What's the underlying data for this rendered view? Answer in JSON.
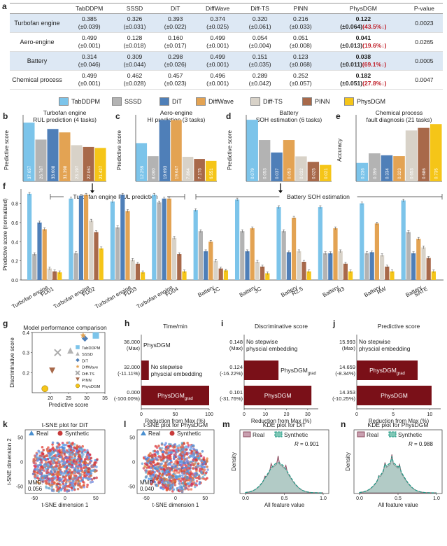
{
  "panel_letters": {
    "a": "a",
    "b": "b",
    "c": "c",
    "d": "d",
    "e": "e",
    "f": "f",
    "g": "g",
    "h": "h",
    "i": "i",
    "j": "j",
    "k": "k",
    "l": "l",
    "m": "m",
    "n": "n"
  },
  "table": {
    "columns": [
      "",
      "TabDDPM",
      "SSSD",
      "DiT",
      "DiffWave",
      "Diff-TS",
      "PINN",
      "PhysDGM",
      "P-value"
    ],
    "rows": [
      {
        "name": "Turbofan engine",
        "shade": true,
        "cells": [
          [
            "0.385",
            "(±0.039)"
          ],
          [
            "0.326",
            "(±0.031)"
          ],
          [
            "0.393",
            "(±0.022)"
          ],
          [
            "0.374",
            "(±0.025)"
          ],
          [
            "0.320",
            "(±0.061)"
          ],
          [
            "0.216",
            "(±0.033)"
          ]
        ],
        "best": [
          "0.122",
          "(±0.064)",
          "(43.5%↓)"
        ],
        "p": "0.0023"
      },
      {
        "name": "Aero-engine",
        "shade": false,
        "cells": [
          [
            "0.499",
            "(±0.001)"
          ],
          [
            "0.128",
            "(±0.018)"
          ],
          [
            "0.160",
            "(±0.017)"
          ],
          [
            "0.499",
            "(±0.001)"
          ],
          [
            "0.054",
            "(±0.004)"
          ],
          [
            "0.051",
            "(±0.008)"
          ]
        ],
        "best": [
          "0.041",
          "(±0.013)",
          "(19.6%↓)"
        ],
        "p": "0.0265"
      },
      {
        "name": "Battery",
        "shade": true,
        "cells": [
          [
            "0.314",
            "(±0.046)"
          ],
          [
            "0.309",
            "(±0.044)"
          ],
          [
            "0.298",
            "(±0.026)"
          ],
          [
            "0.499",
            "(±0.001)"
          ],
          [
            "0.151",
            "(±0.035)"
          ],
          [
            "0.123",
            "(±0.068)"
          ]
        ],
        "best": [
          "0.038",
          "(±0.011)",
          "(69.1%↓)"
        ],
        "p": "0.0005"
      },
      {
        "name": "Chemical process",
        "shade": false,
        "cells": [
          [
            "0.499",
            "(±0.001)"
          ],
          [
            "0.462",
            "(±0.028)"
          ],
          [
            "0.457",
            "(±0.023)"
          ],
          [
            "0.496",
            "(±0.001)"
          ],
          [
            "0.289",
            "(±0.042)"
          ],
          [
            "0.252",
            "(±0.057)"
          ]
        ],
        "best": [
          "0.182",
          "(±0.051)",
          "(27.8%↓)"
        ],
        "p": "0.0047"
      }
    ]
  },
  "legend": {
    "items": [
      "TabDDPM",
      "SSSD",
      "DiT",
      "DiffWave",
      "Diff-TS",
      "PINN",
      "PhysDGM"
    ]
  },
  "colors": {
    "TabDDPM": "#7cc4ea",
    "SSSD": "#b3b3b3",
    "DiT": "#4f7fb8",
    "DiffWave": "#e3a353",
    "Diff-TS": "#d8d2c8",
    "PINN": "#a8694a",
    "PhysDGM": "#f5c518",
    "dark": "#7a1018"
  },
  "chart_data": [
    {
      "type": "bar",
      "panel": "b",
      "title": "Turbofan engine",
      "subtitle": "RUL prediction (4 tasks)",
      "ylabel": "Predictive score",
      "categories": [
        "TabDDPM",
        "SSSD",
        "DiT",
        "DiffWave",
        "Diff-TS",
        "PINN",
        "PhysDGM"
      ],
      "values": [
        37.657,
        26.787,
        33.608,
        31.398,
        23.197,
        22.061,
        21.427
      ],
      "labels": [
        "37.657",
        "26.787",
        "33.608",
        "31.398",
        "23.197",
        "22.061",
        "21.427"
      ],
      "ylim": [
        0,
        40
      ]
    },
    {
      "type": "bar",
      "panel": "c",
      "title": "Aero-engine",
      "subtitle": "HI prediction (3 tasks)",
      "ylabel": "Predictive score",
      "categories": [
        "TabDDPM",
        "SSSD",
        "DiT",
        "DiffWave",
        "Diff-TS",
        "PINN",
        "PhysDGM"
      ],
      "values": [
        12.259,
        8.06,
        19.693,
        19.647,
        7.864,
        7.175,
        6.551
      ],
      "labels": [
        "12.259",
        "8.060",
        "19.693",
        "19.647",
        "7.864",
        "7.175",
        "6.551"
      ],
      "ylim": [
        0,
        20
      ]
    },
    {
      "type": "bar",
      "panel": "d",
      "title": "Battery",
      "subtitle": "SOH estimation (6 tasks)",
      "ylabel": "Predictive score",
      "categories": [
        "TabDDPM",
        "SSSD",
        "DiT",
        "DiffWave",
        "Diff-TS",
        "PINN",
        "PhysDGM"
      ],
      "values": [
        0.079,
        0.053,
        0.037,
        0.053,
        0.032,
        0.025,
        0.021
      ],
      "labels": [
        "0.079",
        "0.053",
        "0.037",
        "0.053",
        "0.032",
        "0.025",
        "0.021"
      ],
      "ylim": [
        0,
        0.08
      ]
    },
    {
      "type": "bar",
      "panel": "e",
      "title": "Chemical process",
      "subtitle": "fault diagnosis (21 tasks)",
      "ylabel": "Accuracy",
      "categories": [
        "TabDDPM",
        "SSSD",
        "DiT",
        "DiffWave",
        "Diff-TS",
        "PINN",
        "PhysDGM"
      ],
      "values": [
        0.236,
        0.359,
        0.334,
        0.323,
        0.653,
        0.686,
        0.735
      ],
      "labels": [
        "0.236",
        "0.359",
        "0.334",
        "0.323",
        "0.653",
        "0.686",
        "0.735"
      ],
      "ylim": [
        0,
        0.8
      ]
    },
    {
      "type": "bar",
      "panel": "f",
      "ylabel": "Predictive score (normalized)",
      "bracket_left": "Turbofan engine RUL prediction",
      "bracket_right": "Battery SOH estimation",
      "ylim": [
        0,
        1
      ],
      "yticks": [
        "0.0",
        "0.2",
        "0.4",
        "0.6",
        "0.8"
      ],
      "categories": [
        "Turbofan engine FD01",
        "Turbofan engine FD02",
        "Turbofan engine FD03",
        "Turbofan engine FD04",
        "Battery 2C",
        "Battery 3C",
        "Battery R2.5",
        "Battery R3",
        "Battery RW",
        "Battery SATE"
      ],
      "series": [
        {
          "name": "TabDDPM",
          "values": [
            0.9,
            0.85,
            0.82,
            0.89,
            0.73,
            0.84,
            0.76,
            0.76,
            0.8,
            0.83
          ]
        },
        {
          "name": "SSSD",
          "values": [
            0.27,
            0.28,
            0.55,
            0.81,
            0.51,
            0.51,
            0.51,
            0.28,
            0.28,
            0.5
          ]
        },
        {
          "name": "DiT",
          "values": [
            0.6,
            0.88,
            0.89,
            0.85,
            0.3,
            0.3,
            0.29,
            0.28,
            0.29,
            0.28
          ]
        },
        {
          "name": "DiffWave",
          "values": [
            0.53,
            0.89,
            0.72,
            0.85,
            0.4,
            0.54,
            0.65,
            0.54,
            0.59,
            0.43
          ]
        },
        {
          "name": "Diff-TS",
          "values": [
            0.12,
            0.62,
            0.21,
            0.44,
            0.2,
            0.19,
            0.3,
            0.3,
            0.26,
            0.34
          ]
        },
        {
          "name": "PINN",
          "values": [
            0.09,
            0.5,
            0.17,
            0.27,
            0.12,
            0.14,
            0.19,
            0.17,
            0.14,
            0.23
          ]
        },
        {
          "name": "PhysDGM",
          "values": [
            0.08,
            0.33,
            0.08,
            0.09,
            0.1,
            0.07,
            0.09,
            0.09,
            0.09,
            0.09
          ]
        }
      ]
    },
    {
      "type": "scatter",
      "panel": "g",
      "title": "Model performance comparison",
      "xlabel": "Predictive score",
      "ylabel": "Discriminative score",
      "xlim": [
        15,
        35
      ],
      "ylim": [
        0.1,
        0.4
      ],
      "points": [
        {
          "name": "TabDDPM",
          "x": 32.5,
          "y": 0.385,
          "shape": "square"
        },
        {
          "name": "SSSD",
          "x": 25.5,
          "y": 0.31,
          "shape": "triangle"
        },
        {
          "name": "DiT",
          "x": 29.5,
          "y": 0.37,
          "shape": "diamond"
        },
        {
          "name": "DiffWave",
          "x": 29.0,
          "y": 0.385,
          "shape": "star"
        },
        {
          "name": "Diff-TS",
          "x": 22.0,
          "y": 0.3,
          "shape": "cross"
        },
        {
          "name": "PINN",
          "x": 20.5,
          "y": 0.21,
          "shape": "tri-down"
        },
        {
          "name": "PhysDGM",
          "x": 18.5,
          "y": 0.12,
          "shape": "circle"
        }
      ]
    },
    {
      "type": "bar",
      "panel": "h",
      "title": "Time/min",
      "xlabel": "Reduction from Max (%)",
      "xlim": [
        0,
        100
      ],
      "xticks": [
        "0",
        "50",
        "100"
      ],
      "rows": [
        {
          "value_label": "36.000",
          "pct_label": "(Max)",
          "bar": 0,
          "label": "PhysDGM",
          "label_sub": ""
        },
        {
          "value_label": "32.000",
          "pct_label": "(-11.11%)",
          "bar": 11.11,
          "label": "No stepwise",
          "label2": "physcial embedding",
          "label_sub": ""
        },
        {
          "value_label": "0.000",
          "pct_label": "(-100.00%)",
          "bar": 100,
          "label": "PhysDGM",
          "label_sub": "grad"
        }
      ]
    },
    {
      "type": "bar",
      "panel": "i",
      "title": "Discriminative score",
      "xlabel": "Reduction from Max (%)",
      "xlim": [
        0,
        35
      ],
      "xticks": [
        "0",
        "10",
        "20",
        "30"
      ],
      "rows": [
        {
          "value_label": "0.148",
          "pct_label": "(Max)",
          "bar": 0,
          "label": "No stepwise",
          "label2": "physcial embedding",
          "label_sub": ""
        },
        {
          "value_label": "0.124",
          "pct_label": "(-16.22%)",
          "bar": 16.22,
          "label": "PhysDGM",
          "label_sub": "grad"
        },
        {
          "value_label": "0.101",
          "pct_label": "(-31.76%)",
          "bar": 31.76,
          "label": "PhysDGM",
          "label_sub": ""
        }
      ]
    },
    {
      "type": "bar",
      "panel": "j",
      "title": "Predictive score",
      "xlabel": "Reduction from Max (%)",
      "xlim": [
        0,
        11.5
      ],
      "xticks": [
        "0",
        "5",
        "10"
      ],
      "rows": [
        {
          "value_label": "15.993",
          "pct_label": "(Max)",
          "bar": 0,
          "label": "No stepwise",
          "label2": "physcial embedding",
          "label_sub": ""
        },
        {
          "value_label": "14.659",
          "pct_label": "(-8.34%)",
          "bar": 8.34,
          "label": "PhysDGM",
          "label_sub": "grad"
        },
        {
          "value_label": "14.353",
          "pct_label": "(-10.25%)",
          "bar": 10.25,
          "label": "PhysDGM",
          "label_sub": ""
        }
      ]
    },
    {
      "type": "scatter",
      "panel": "k",
      "title": "t-SNE plot for DiT",
      "xlabel": "t-SNE dimension 1",
      "ylabel": "t-SNE dimension 2",
      "legend": [
        "Real",
        "Synthetic"
      ],
      "note": "MMD:",
      "note2": "0.056",
      "xticks": [
        "-50",
        "0",
        "50"
      ],
      "yticks": [
        "-50",
        "0",
        "50"
      ]
    },
    {
      "type": "scatter",
      "panel": "l",
      "title": "t-SNE plot for PhysDGM",
      "xlabel": "t-SNE dimension 1",
      "legend": [
        "Real",
        "Synthetic"
      ],
      "note": "MMD:",
      "note2": "0.040",
      "xticks": [
        "-50",
        "0",
        "50"
      ],
      "yticks": [
        "-50",
        "0",
        "50"
      ]
    },
    {
      "type": "area",
      "panel": "m",
      "title": "KDE plot for DiT",
      "xlabel": "All feature value",
      "ylabel": "Density",
      "legend": [
        "Real",
        "Synthetic"
      ],
      "r_label": "R",
      "r_value": "= 0.901",
      "xticks": [
        "0.0",
        "0.5",
        "1.0"
      ]
    },
    {
      "type": "area",
      "panel": "n",
      "title": "KDE plot for PhysDGM",
      "xlabel": "All feature value",
      "ylabel": "Density",
      "legend": [
        "Real",
        "Synthetic"
      ],
      "r_label": "R",
      "r_value": "= 0.988",
      "xticks": [
        "0.0",
        "0.5",
        "1.0"
      ]
    }
  ],
  "arrows": {
    "f_arrow_label": "↓"
  }
}
